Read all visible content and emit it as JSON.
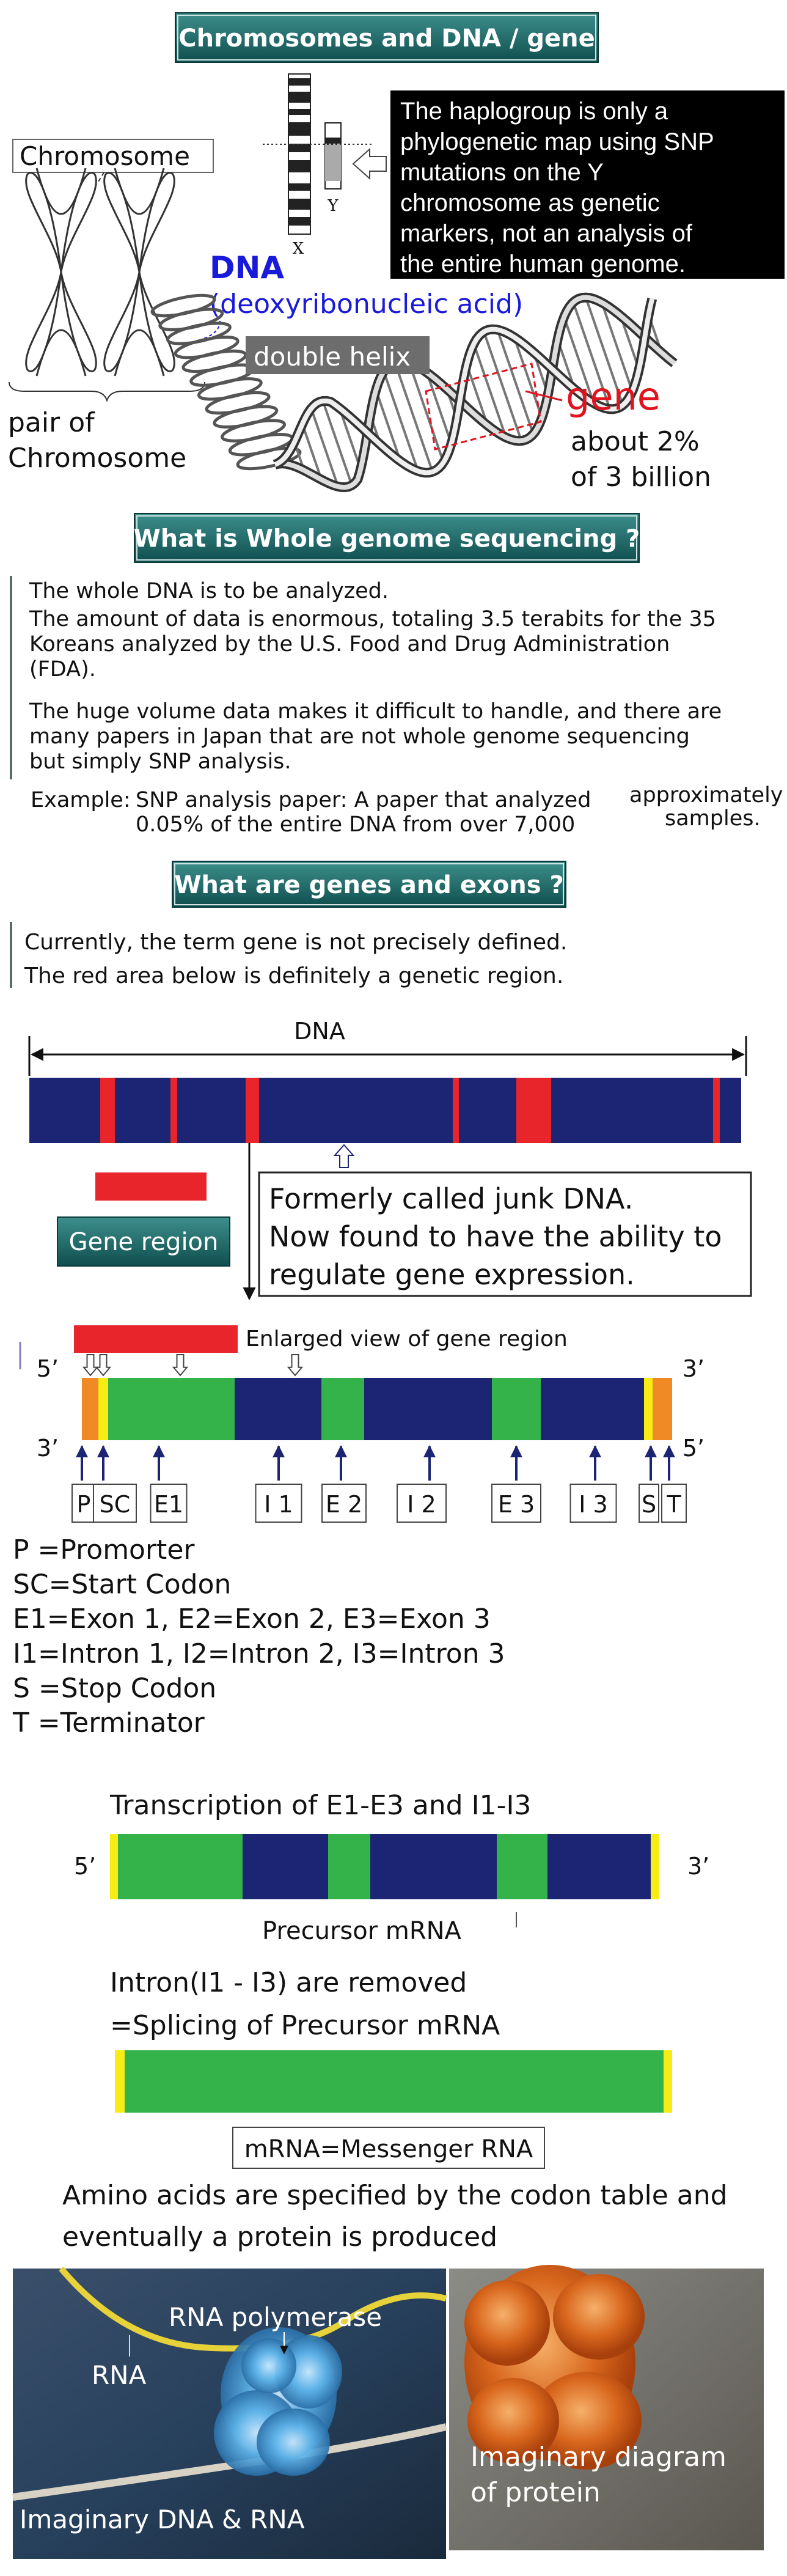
{
  "header": {
    "title": "Chromosomes and DNA / gene"
  },
  "chromosome_section": {
    "chromosome_label": "Chromosome",
    "pair_label": [
      "pair of",
      "Chromosome"
    ],
    "x_label": "X",
    "y_label": "Y",
    "note": [
      "The haplogroup is only a",
      "phylogenetic map using SNP",
      "mutations on the Y",
      "chromosome as genetic",
      "markers, not an analysis of",
      "the entire human genome."
    ],
    "dna_label": "DNA",
    "dna_full": "(deoxyribonucleic acid)",
    "double_helix": "double helix",
    "gene_label": "gene",
    "gene_share": [
      "about 2%",
      "of 3 billion"
    ]
  },
  "wgs_section": {
    "title": "What is Whole genome sequencing ?",
    "paragraphs": [
      [
        "The whole DNA is to be analyzed."
      ],
      [
        "The amount of data is enormous, totaling 3.5 terabits for the 35",
        "Koreans analyzed by the U.S. Food and Drug Administration",
        "(FDA)."
      ],
      [
        "The huge volume data makes it difficult to handle, and there are",
        "many papers in Japan that are not whole genome sequencing",
        "but simply SNP analysis."
      ]
    ],
    "example": {
      "label": "Example:",
      "lines": [
        "SNP analysis paper: A paper that analyzed",
        "0.05% of the entire DNA from over 7,000"
      ],
      "aside": [
        "approximately",
        "samples."
      ]
    }
  },
  "genes_section": {
    "title": "What are genes and exons ?",
    "intro": [
      "Currently, the term gene is not precisely defined.",
      "The red area below is definitely a genetic region."
    ],
    "dna_diagram": {
      "dna_label": "DNA",
      "gene_region": "Gene region",
      "junk_note": [
        "Formerly called junk DNA.",
        "Now found to have the ability to",
        "regulate gene expression."
      ]
    },
    "enlarged_view": {
      "caption": "Enlarged view of gene region",
      "top_left_end": "5’",
      "top_right_end": "3’",
      "bottom_left_end": "3’",
      "bottom_right_end": "5’",
      "part_labels": [
        "P",
        "SC",
        "E1",
        "I 1",
        "E 2",
        "I 2",
        "E 3",
        "I 3",
        "S",
        "T"
      ]
    },
    "legend": [
      "P  =Promorter",
      "SC=Start Codon",
      "E1=Exon 1, E2=Exon 2, E3=Exon 3",
      "I1=Intron 1, I2=Intron 2, I3=Intron 3",
      "S =Stop Codon",
      "T  =Terminator"
    ],
    "transcription": {
      "title": "Transcription of E1-E3 and I1-I3",
      "left_end": "5’",
      "right_end": "3’",
      "caption": "Precursor mRNA"
    },
    "splicing": [
      "Intron(I1 - I3) are removed",
      "=Splicing of Precursor mRNA"
    ],
    "mrna_label": "mRNA=Messenger RNA",
    "protein_text": [
      "Amino acids are specified by the codon table and",
      "eventually a protein is produced"
    ],
    "photos": {
      "polymerase": "RNA polymerase",
      "rna": "RNA",
      "dna_rna": "Imaginary DNA & RNA",
      "protein": [
        "Imaginary diagram",
        "of protein"
      ]
    }
  }
}
